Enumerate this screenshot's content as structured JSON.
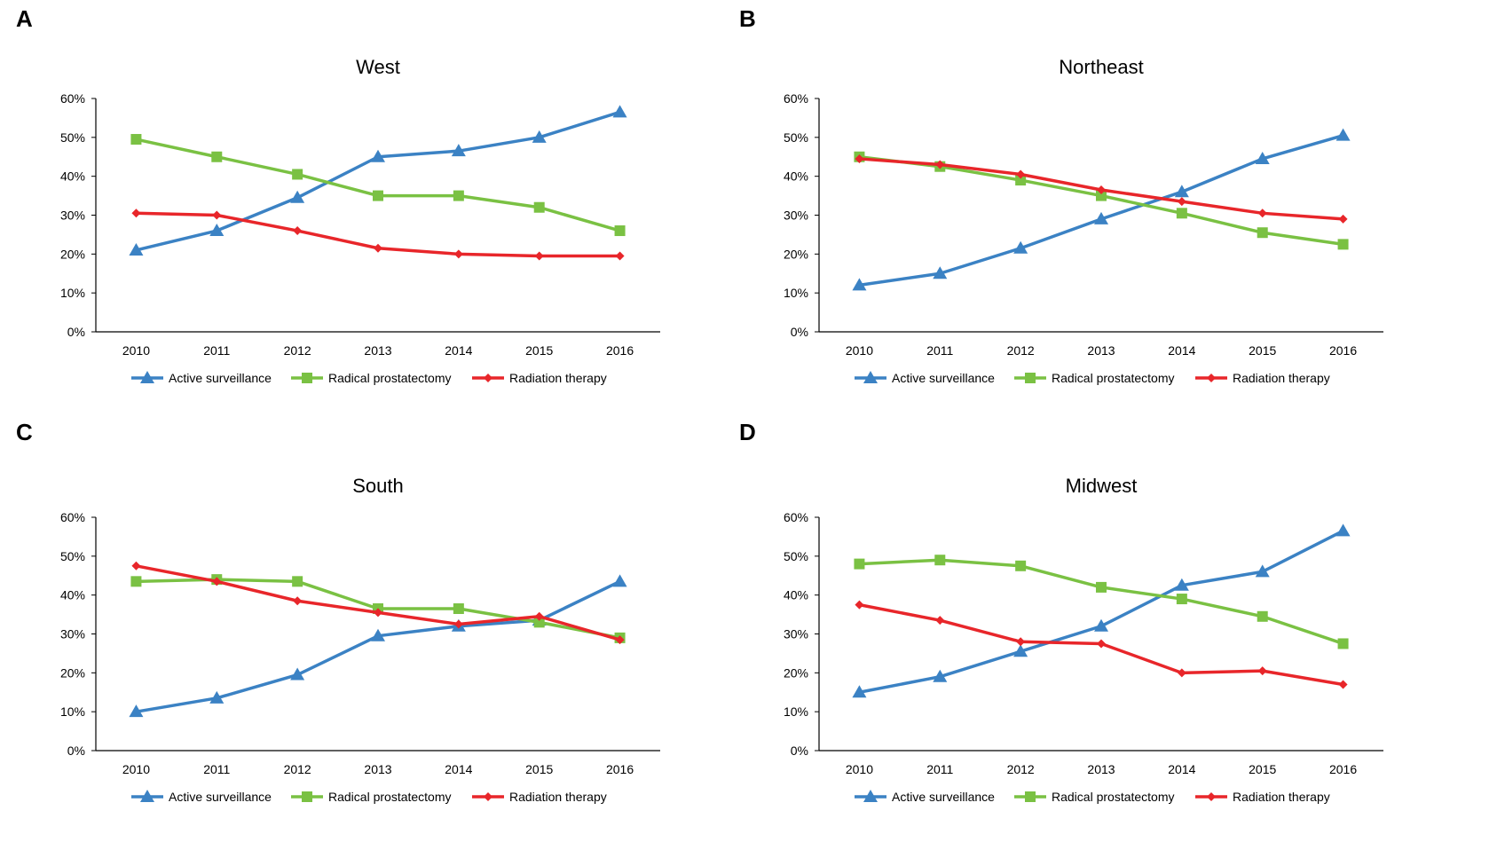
{
  "panels": [
    {
      "label": "A",
      "chart_data": {
        "type": "line",
        "title": "West",
        "categories": [
          "2010",
          "2011",
          "2012",
          "2013",
          "2014",
          "2015",
          "2016"
        ],
        "yticks": [
          "0%",
          "10%",
          "20%",
          "30%",
          "40%",
          "50%",
          "60%"
        ],
        "ylim": [
          0,
          60
        ],
        "series": [
          {
            "name": "Active surveillance",
            "color": "#3b82c4",
            "marker": "triangle",
            "values": [
              21,
              26,
              34.5,
              45,
              46.5,
              50,
              56.5
            ]
          },
          {
            "name": "Radical prostatectomy",
            "color": "#7ac143",
            "marker": "square",
            "values": [
              49.5,
              45,
              40.5,
              35,
              35,
              32,
              26
            ]
          },
          {
            "name": "Radiation therapy",
            "color": "#e8262a",
            "marker": "diamond",
            "values": [
              30.5,
              30,
              26,
              21.5,
              20,
              19.5,
              19.5
            ]
          }
        ]
      }
    },
    {
      "label": "B",
      "chart_data": {
        "type": "line",
        "title": "Northeast",
        "categories": [
          "2010",
          "2011",
          "2012",
          "2013",
          "2014",
          "2015",
          "2016"
        ],
        "yticks": [
          "0%",
          "10%",
          "20%",
          "30%",
          "40%",
          "50%",
          "60%"
        ],
        "ylim": [
          0,
          60
        ],
        "series": [
          {
            "name": "Active surveillance",
            "color": "#3b82c4",
            "marker": "triangle",
            "values": [
              12,
              15,
              21.5,
              29,
              36,
              44.5,
              50.5
            ]
          },
          {
            "name": "Radical prostatectomy",
            "color": "#7ac143",
            "marker": "square",
            "values": [
              45,
              42.5,
              39,
              35,
              30.5,
              25.5,
              22.5
            ]
          },
          {
            "name": "Radiation therapy",
            "color": "#e8262a",
            "marker": "diamond",
            "values": [
              44.5,
              43,
              40.5,
              36.5,
              33.5,
              30.5,
              29
            ]
          }
        ]
      }
    },
    {
      "label": "C",
      "chart_data": {
        "type": "line",
        "title": "South",
        "categories": [
          "2010",
          "2011",
          "2012",
          "2013",
          "2014",
          "2015",
          "2016"
        ],
        "yticks": [
          "0%",
          "10%",
          "20%",
          "30%",
          "40%",
          "50%",
          "60%"
        ],
        "ylim": [
          0,
          60
        ],
        "series": [
          {
            "name": "Active surveillance",
            "color": "#3b82c4",
            "marker": "triangle",
            "values": [
              10,
              13.5,
              19.5,
              29.5,
              32,
              33.5,
              43.5
            ]
          },
          {
            "name": "Radical prostatectomy",
            "color": "#7ac143",
            "marker": "square",
            "values": [
              43.5,
              44,
              43.5,
              36.5,
              36.5,
              33,
              29
            ]
          },
          {
            "name": "Radiation therapy",
            "color": "#e8262a",
            "marker": "diamond",
            "values": [
              47.5,
              43.5,
              38.5,
              35.5,
              32.5,
              34.5,
              28.5
            ]
          }
        ]
      }
    },
    {
      "label": "D",
      "chart_data": {
        "type": "line",
        "title": "Midwest",
        "categories": [
          "2010",
          "2011",
          "2012",
          "2013",
          "2014",
          "2015",
          "2016"
        ],
        "yticks": [
          "0%",
          "10%",
          "20%",
          "30%",
          "40%",
          "50%",
          "60%"
        ],
        "ylim": [
          0,
          60
        ],
        "series": [
          {
            "name": "Active surveillance",
            "color": "#3b82c4",
            "marker": "triangle",
            "values": [
              15,
              19,
              25.5,
              32,
              42.5,
              46,
              56.5
            ]
          },
          {
            "name": "Radical prostatectomy",
            "color": "#7ac143",
            "marker": "square",
            "values": [
              48,
              49,
              47.5,
              42,
              39,
              34.5,
              27.5
            ]
          },
          {
            "name": "Radiation therapy",
            "color": "#e8262a",
            "marker": "diamond",
            "values": [
              37.5,
              33.5,
              28,
              27.5,
              20,
              20.5,
              17
            ]
          }
        ]
      }
    }
  ]
}
